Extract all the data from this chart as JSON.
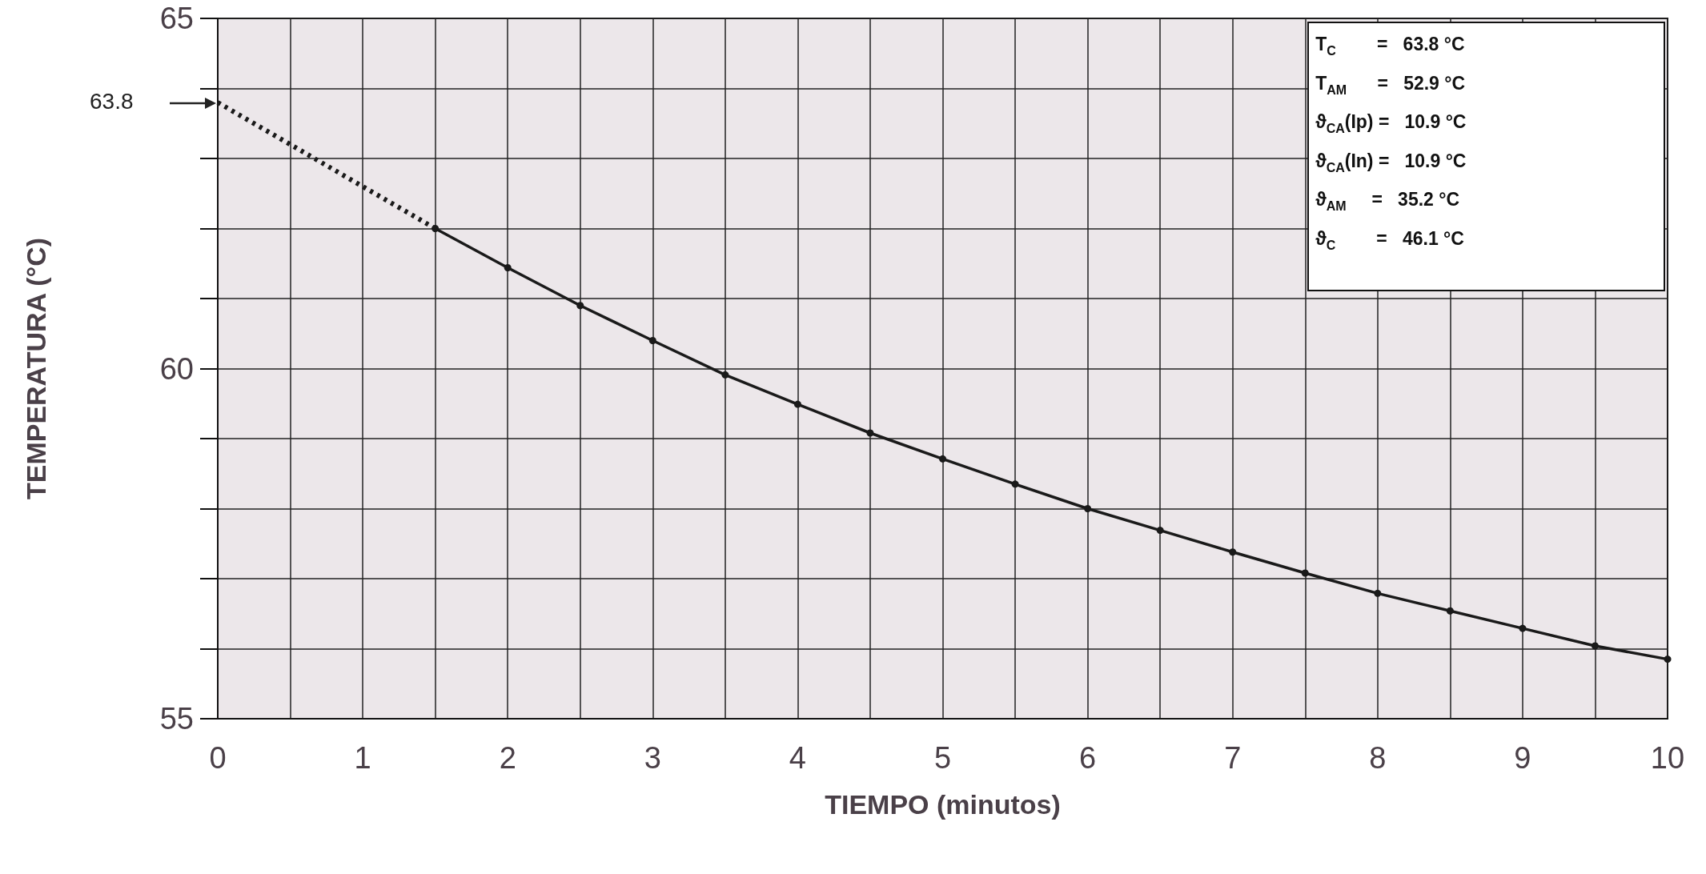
{
  "chart_data": {
    "type": "line",
    "xlabel": "TIEMPO (minutos)",
    "ylabel": "TEMPERATURA (°C)",
    "series": [
      {
        "type": "line",
        "color": "#1a1a1a",
        "line_style": "dotted",
        "x": [
          0,
          1.5
        ],
        "values": [
          63.8,
          62.0
        ]
      },
      {
        "type": "line",
        "color": "#1a1a1a",
        "marker": "circle",
        "line_style": "solid",
        "x": [
          1.5,
          2,
          2.5,
          3,
          3.5,
          4,
          4.5,
          5,
          5.5,
          6,
          6.5,
          7,
          7.5,
          8,
          8.5,
          9,
          9.5,
          10
        ],
        "values": [
          62.0,
          61.44,
          60.9,
          60.4,
          59.91,
          59.49,
          59.08,
          58.71,
          58.35,
          58.0,
          57.69,
          57.38,
          57.08,
          56.79,
          56.54,
          56.29,
          56.04,
          55.85
        ]
      }
    ],
    "xlim": [
      0,
      10
    ],
    "ylim": [
      55,
      65
    ],
    "xticks": [
      0,
      {
        "value": 0.5,
        "label": null
      },
      1,
      {
        "value": 1.5,
        "label": null
      },
      2,
      {
        "value": 2.5,
        "label": null
      },
      3,
      {
        "value": 3.5,
        "label": null
      },
      4,
      {
        "value": 4.5,
        "label": null
      },
      5,
      {
        "value": 5.5,
        "label": null
      },
      6,
      {
        "value": 6.5,
        "label": null
      },
      7,
      {
        "value": 7.5,
        "label": null
      },
      8,
      {
        "value": 8.5,
        "label": null
      },
      9,
      {
        "value": 9.5,
        "label": null
      },
      10
    ],
    "yticks": [
      55,
      {
        "value": 56,
        "label": null
      },
      {
        "value": 57,
        "label": null
      },
      {
        "value": 58,
        "label": null
      },
      {
        "value": 59,
        "label": null
      },
      60,
      {
        "value": 61,
        "label": null
      },
      {
        "value": 62,
        "label": null
      },
      {
        "value": 63,
        "label": null
      },
      {
        "value": 64,
        "label": null
      },
      65
    ],
    "grid": true,
    "annotations": [
      "63.8",
      "T$_{C}$        =   63.8 °C",
      "T$_{AM}$      =   52.9 °C",
      "ϑ$_{CA}$(Ip) =   10.9 °C",
      "ϑ$_{CA}$(In) =   10.9 °C",
      "ϑ$_{AM}$     =   35.2 °C",
      "ϑ$_{C}$        =   46.1 °C"
    ]
  }
}
